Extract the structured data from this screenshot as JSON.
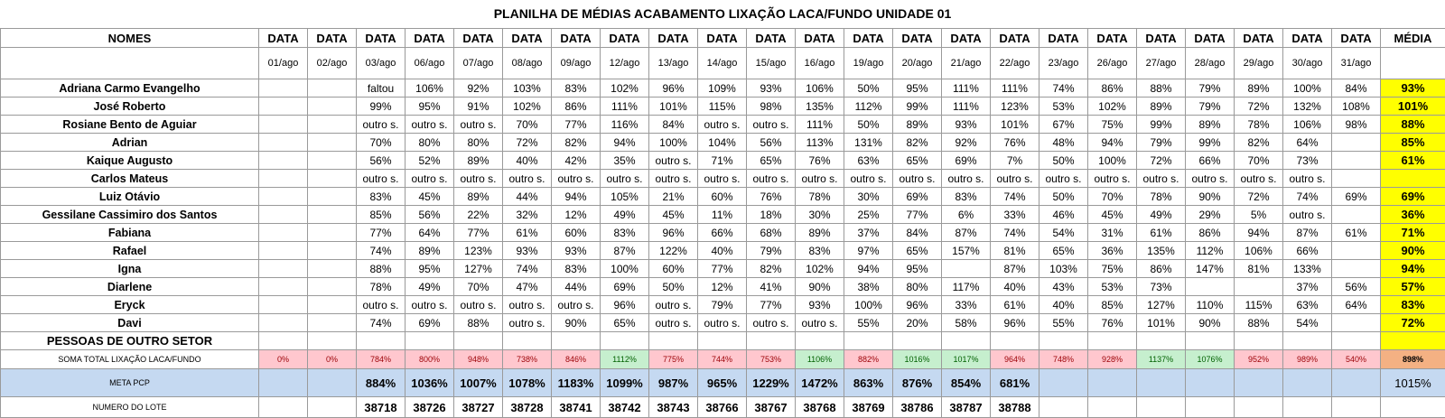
{
  "title": "PLANILHA DE MÉDIAS ACABAMENTO LIXAÇÃO LACA/FUNDO UNIDADE 01",
  "header": {
    "names_label": "NOMES",
    "data_label": "DATA",
    "avg_label": "MÉDIA",
    "dates": [
      "01/ago",
      "02/ago",
      "03/ago",
      "06/ago",
      "07/ago",
      "08/ago",
      "09/ago",
      "12/ago",
      "13/ago",
      "14/ago",
      "15/ago",
      "16/ago",
      "19/ago",
      "20/ago",
      "21/ago",
      "22/ago",
      "23/ago",
      "26/ago",
      "27/ago",
      "28/ago",
      "29/ago",
      "30/ago",
      "31/ago"
    ]
  },
  "rows": [
    {
      "name": "Adriana Carmo Evangelho",
      "values": [
        "",
        "",
        "faltou",
        "106%",
        "92%",
        "103%",
        "83%",
        "102%",
        "96%",
        "109%",
        "93%",
        "106%",
        "50%",
        "95%",
        "111%",
        "111%",
        "74%",
        "86%",
        "88%",
        "79%",
        "89%",
        "100%",
        "84%"
      ],
      "avg": "93%"
    },
    {
      "name": "José Roberto",
      "values": [
        "",
        "",
        "99%",
        "95%",
        "91%",
        "102%",
        "86%",
        "111%",
        "101%",
        "115%",
        "98%",
        "135%",
        "112%",
        "99%",
        "111%",
        "123%",
        "53%",
        "102%",
        "89%",
        "79%",
        "72%",
        "132%",
        "108%"
      ],
      "avg": "101%"
    },
    {
      "name": "Rosiane Bento de Aguiar",
      "values": [
        "",
        "",
        "outro s.",
        "outro s.",
        "outro s.",
        "70%",
        "77%",
        "116%",
        "84%",
        "outro s.",
        "outro s.",
        "111%",
        "50%",
        "89%",
        "93%",
        "101%",
        "67%",
        "75%",
        "99%",
        "89%",
        "78%",
        "106%",
        "98%"
      ],
      "avg": "88%"
    },
    {
      "name": "Adrian",
      "values": [
        "",
        "",
        "70%",
        "80%",
        "80%",
        "72%",
        "82%",
        "94%",
        "100%",
        "104%",
        "56%",
        "113%",
        "131%",
        "82%",
        "92%",
        "76%",
        "48%",
        "94%",
        "79%",
        "99%",
        "82%",
        "64%",
        ""
      ],
      "avg": "85%"
    },
    {
      "name": "Kaique Augusto",
      "values": [
        "",
        "",
        "56%",
        "52%",
        "89%",
        "40%",
        "42%",
        "35%",
        "outro s.",
        "71%",
        "65%",
        "76%",
        "63%",
        "65%",
        "69%",
        "7%",
        "50%",
        "100%",
        "72%",
        "66%",
        "70%",
        "73%",
        ""
      ],
      "avg": "61%"
    },
    {
      "name": "Carlos Mateus",
      "values": [
        "",
        "",
        "outro s.",
        "outro s.",
        "outro s.",
        "outro s.",
        "outro s.",
        "outro s.",
        "outro s.",
        "outro s.",
        "outro s.",
        "outro s.",
        "outro s.",
        "outro s.",
        "outro s.",
        "outro s.",
        "outro s.",
        "outro s.",
        "outro s.",
        "outro s.",
        "outro s.",
        "outro s.",
        ""
      ],
      "avg": ""
    },
    {
      "name": "Luiz Otávio",
      "values": [
        "",
        "",
        "83%",
        "45%",
        "89%",
        "44%",
        "94%",
        "105%",
        "21%",
        "60%",
        "76%",
        "78%",
        "30%",
        "69%",
        "83%",
        "74%",
        "50%",
        "70%",
        "78%",
        "90%",
        "72%",
        "74%",
        "69%"
      ],
      "avg": "69%"
    },
    {
      "name": "Gessilane Cassimiro dos Santos",
      "values": [
        "",
        "",
        "85%",
        "56%",
        "22%",
        "32%",
        "12%",
        "49%",
        "45%",
        "11%",
        "18%",
        "30%",
        "25%",
        "77%",
        "6%",
        "33%",
        "46%",
        "45%",
        "49%",
        "29%",
        "5%",
        "outro s.",
        ""
      ],
      "avg": "36%"
    },
    {
      "name": "Fabiana",
      "values": [
        "",
        "",
        "77%",
        "64%",
        "77%",
        "61%",
        "60%",
        "83%",
        "96%",
        "66%",
        "68%",
        "89%",
        "37%",
        "84%",
        "87%",
        "74%",
        "54%",
        "31%",
        "61%",
        "86%",
        "94%",
        "87%",
        "61%"
      ],
      "avg": "71%"
    },
    {
      "name": "Rafael",
      "values": [
        "",
        "",
        "74%",
        "89%",
        "123%",
        "93%",
        "93%",
        "87%",
        "122%",
        "40%",
        "79%",
        "83%",
        "97%",
        "65%",
        "157%",
        "81%",
        "65%",
        "36%",
        "135%",
        "112%",
        "106%",
        "66%",
        ""
      ],
      "avg": "90%"
    },
    {
      "name": "Igna",
      "values": [
        "",
        "",
        "88%",
        "95%",
        "127%",
        "74%",
        "83%",
        "100%",
        "60%",
        "77%",
        "82%",
        "102%",
        "94%",
        "95%",
        "",
        "87%",
        "103%",
        "75%",
        "86%",
        "147%",
        "81%",
        "133%",
        ""
      ],
      "avg": "94%"
    },
    {
      "name": "Diarlene",
      "values": [
        "",
        "",
        "78%",
        "49%",
        "70%",
        "47%",
        "44%",
        "69%",
        "50%",
        "12%",
        "41%",
        "90%",
        "38%",
        "80%",
        "117%",
        "40%",
        "43%",
        "53%",
        "73%",
        "",
        "",
        "37%",
        "56%"
      ],
      "avg": "57%"
    },
    {
      "name": "Eryck",
      "values": [
        "",
        "",
        "outro s.",
        "outro s.",
        "outro s.",
        "outro s.",
        "outro s.",
        "96%",
        "outro s.",
        "79%",
        "77%",
        "93%",
        "100%",
        "96%",
        "33%",
        "61%",
        "40%",
        "85%",
        "127%",
        "110%",
        "115%",
        "63%",
        "64%"
      ],
      "avg": "83%"
    },
    {
      "name": "Davi",
      "values": [
        "",
        "",
        "74%",
        "69%",
        "88%",
        "outro s.",
        "90%",
        "65%",
        "outro s.",
        "outro s.",
        "outro s.",
        "outro s.",
        "55%",
        "20%",
        "58%",
        "96%",
        "55%",
        "76%",
        "101%",
        "90%",
        "88%",
        "54%",
        ""
      ],
      "avg": "72%"
    }
  ],
  "section": {
    "label": "PESSOAS DE OUTRO SETOR"
  },
  "soma": {
    "label": "SOMA TOTAL LIXAÇÃO LACA/FUNDO",
    "values": [
      "0%",
      "0%",
      "784%",
      "800%",
      "948%",
      "738%",
      "846%",
      "1112%",
      "775%",
      "744%",
      "753%",
      "1106%",
      "882%",
      "1016%",
      "1017%",
      "964%",
      "748%",
      "928%",
      "1137%",
      "1076%",
      "952%",
      "989%",
      "540%"
    ],
    "status": [
      "red",
      "red",
      "red",
      "red",
      "red",
      "red",
      "red",
      "green",
      "red",
      "red",
      "red",
      "green",
      "red",
      "green",
      "green",
      "red",
      "red",
      "red",
      "green",
      "green",
      "red",
      "red",
      "red"
    ],
    "avg": "898%",
    "colors": {
      "red_bg": "#ffc7ce",
      "red_text": "#9c0006",
      "green_bg": "#c6efce",
      "green_text": "#006100",
      "avg_bg": "#f4b183"
    }
  },
  "meta": {
    "label": "META PCP",
    "values": [
      "",
      "",
      "884%",
      "1036%",
      "1007%",
      "1078%",
      "1183%",
      "1099%",
      "987%",
      "965%",
      "1229%",
      "1472%",
      "863%",
      "876%",
      "854%",
      "681%",
      "",
      "",
      "",
      "",
      "",
      "",
      ""
    ],
    "avg": "1015%",
    "color": "#c5d9f1"
  },
  "lote": {
    "label": "NUMERO DO LOTE",
    "values": [
      "",
      "",
      "38718",
      "38726",
      "38727",
      "38728",
      "38741",
      "38742",
      "38743",
      "38766",
      "38767",
      "38768",
      "38769",
      "38786",
      "38787",
      "38788",
      "",
      "",
      "",
      "",
      "",
      "",
      ""
    ]
  },
  "accent_colors": {
    "average_highlight": "#ffff00"
  }
}
